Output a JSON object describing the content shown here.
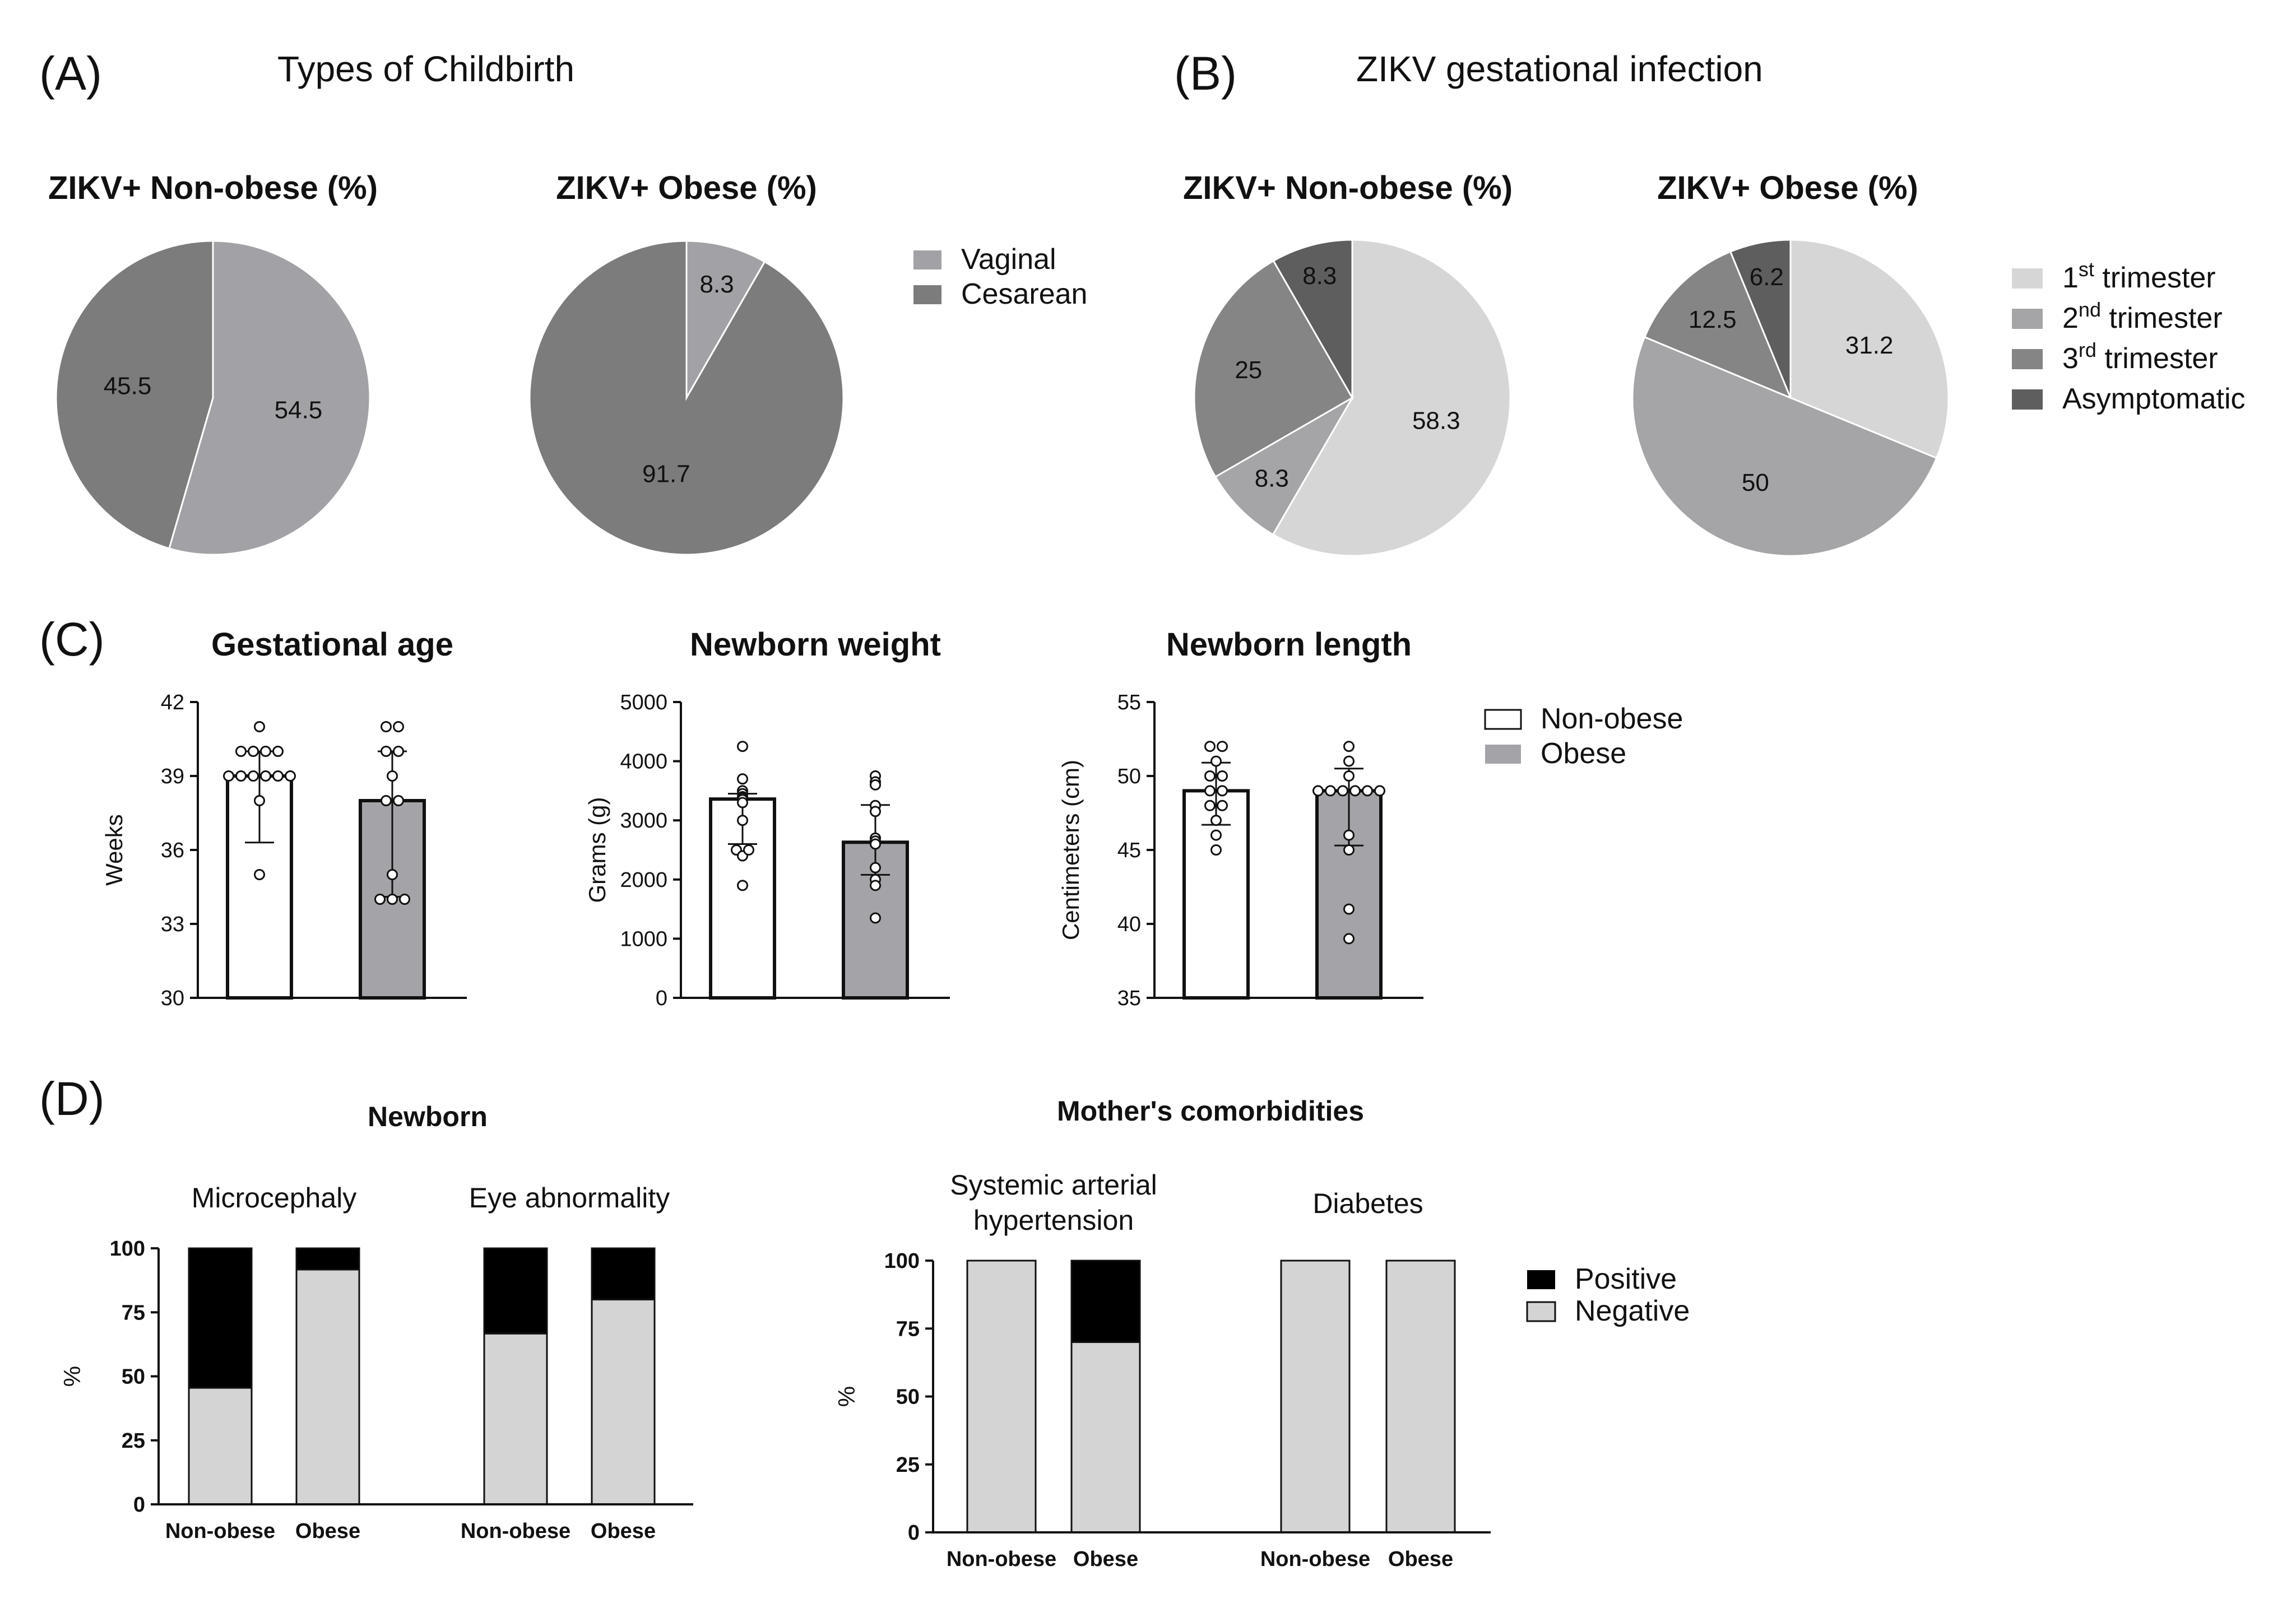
{
  "panel_letters": [
    "(A)",
    "(B)",
    "(C)",
    "(D)"
  ],
  "panel_a_title": "Types of Childbirth",
  "panel_b_title": "ZIKV gestational infection",
  "colors": {
    "vaginal": "#a2a2a6",
    "cesarean": "#7c7c7c",
    "tri1": "#d6d6d6",
    "tri2": "#a5a5a8",
    "tri3": "#858585",
    "asymptomatic": "#5e5e5e",
    "non_obese_fill": "#ffffff",
    "obese_fill": "#a4a4a8",
    "positive": "#000000",
    "negative": "#d4d4d4",
    "ink": "#111111"
  },
  "legend_a": [
    {
      "label": "Vaginal",
      "color": "#a2a2a6"
    },
    {
      "label": "Cesarean",
      "color": "#7c7c7c"
    }
  ],
  "legend_b": [
    {
      "base": "1",
      "sup": "st",
      "rest": " trimester",
      "color": "#d6d6d6"
    },
    {
      "base": "2",
      "sup": "nd",
      "rest": " trimester",
      "color": "#a5a5a8"
    },
    {
      "base": "3",
      "sup": "rd",
      "rest": " trimester",
      "color": "#858585"
    },
    {
      "base": "Asymptomatic",
      "sup": "",
      "rest": "",
      "color": "#5e5e5e"
    }
  ],
  "legend_c": [
    {
      "label": "Non-obese",
      "color": "#ffffff"
    },
    {
      "label": "Obese",
      "color": "#a4a4a8"
    }
  ],
  "legend_d": [
    {
      "label": "Positive",
      "color": "#000000"
    },
    {
      "label": "Negative",
      "color": "#d4d4d4"
    }
  ],
  "panel_d_left_title": "Newborn",
  "panel_d_right_title": "Mother's comorbidities",
  "chart_data": [
    {
      "id": "pieA1",
      "type": "pie",
      "title": "ZIKV+ Non-obese (%)",
      "slices": [
        {
          "label": "Vaginal",
          "value": 54.5,
          "text": "54.5",
          "color": "#a2a2a6"
        },
        {
          "label": "Cesarean",
          "value": 45.5,
          "text": "45.5",
          "color": "#7c7c7c"
        }
      ]
    },
    {
      "id": "pieA2",
      "type": "pie",
      "title": "ZIKV+ Obese (%)",
      "slices": [
        {
          "label": "Vaginal",
          "value": 8.3,
          "text": "8.3",
          "color": "#a2a2a6"
        },
        {
          "label": "Cesarean",
          "value": 91.7,
          "text": "91.7",
          "color": "#7c7c7c"
        }
      ]
    },
    {
      "id": "pieB1",
      "type": "pie",
      "title": "ZIKV+ Non-obese (%)",
      "slices": [
        {
          "label": "1st trimester",
          "value": 58.3,
          "text": "58.3",
          "color": "#d6d6d6"
        },
        {
          "label": "2nd trimester",
          "value": 8.3,
          "text": "8.3",
          "color": "#a5a5a8"
        },
        {
          "label": "3rd trimester",
          "value": 25,
          "text": "25",
          "color": "#858585"
        },
        {
          "label": "Asymptomatic",
          "value": 8.3,
          "text": "8.3",
          "color": "#5e5e5e"
        }
      ]
    },
    {
      "id": "pieB2",
      "type": "pie",
      "title": "ZIKV+ Obese (%)",
      "slices": [
        {
          "label": "1st trimester",
          "value": 31.2,
          "text": "31.2",
          "color": "#d6d6d6"
        },
        {
          "label": "2nd trimester",
          "value": 50,
          "text": "50",
          "color": "#a5a5a8"
        },
        {
          "label": "3rd trimester",
          "value": 12.5,
          "text": "12.5",
          "color": "#858585"
        },
        {
          "label": "Asymptomatic",
          "value": 6.2,
          "text": "6.2",
          "color": "#5e5e5e"
        }
      ]
    },
    {
      "id": "barC1",
      "type": "bar",
      "title": "Gestational age",
      "ylabel": "Weeks",
      "ylim": [
        30,
        42
      ],
      "yticks": [
        "30",
        "33",
        "36",
        "39",
        "42"
      ],
      "ytick_values": [
        30,
        33,
        36,
        39,
        42
      ],
      "categories": [
        "Non-obese",
        "Obese"
      ],
      "values": [
        39,
        38
      ],
      "error": [
        [
          36.3,
          40.0
        ],
        [
          34.1,
          40.0
        ]
      ],
      "points": [
        [
          41,
          40,
          40,
          40,
          40,
          39,
          39,
          39,
          39,
          39,
          39,
          38,
          35
        ],
        [
          41,
          41,
          40,
          40,
          39,
          38,
          38,
          35,
          34,
          34,
          34
        ]
      ]
    },
    {
      "id": "barC2",
      "type": "bar",
      "title": "Newborn weight",
      "ylabel": "Grams (g)",
      "ylim": [
        0,
        5000
      ],
      "yticks": [
        "0",
        "1000",
        "2000",
        "3000",
        "4000",
        "5000"
      ],
      "ytick_values": [
        0,
        1000,
        2000,
        3000,
        4000,
        5000
      ],
      "categories": [
        "Non-obese",
        "Obese"
      ],
      "values": [
        3360,
        2630
      ],
      "error": [
        [
          2600,
          3450
        ],
        [
          2080,
          3260
        ]
      ],
      "points": [
        [
          4250,
          3700,
          3500,
          3450,
          3400,
          3380,
          3350,
          3300,
          3000,
          2500,
          2400,
          2500,
          1900
        ],
        [
          3750,
          3650,
          3600,
          3250,
          3150,
          2700,
          2650,
          2600,
          2200,
          2000,
          1900,
          1350
        ]
      ]
    },
    {
      "id": "barC3",
      "type": "bar",
      "title": "Newborn length",
      "ylabel": "Centimeters (cm)",
      "ylim": [
        35,
        55
      ],
      "yticks": [
        "35",
        "40",
        "45",
        "50",
        "55"
      ],
      "ytick_values": [
        35,
        40,
        45,
        50,
        55
      ],
      "categories": [
        "Non-obese",
        "Obese"
      ],
      "values": [
        49,
        49
      ],
      "error": [
        [
          46.7,
          50.9
        ],
        [
          45.3,
          50.5
        ]
      ],
      "points": [
        [
          52,
          52,
          51,
          50,
          50,
          49,
          49,
          48,
          48,
          47,
          46,
          45
        ],
        [
          52,
          51,
          50,
          49,
          49,
          49,
          49,
          49,
          49,
          46,
          45,
          41,
          39
        ]
      ]
    },
    {
      "id": "stackD1",
      "type": "bar",
      "stacked": true,
      "ylabel": "%",
      "ylim": [
        0,
        100
      ],
      "yticks": [
        "0",
        "25",
        "50",
        "75",
        "100"
      ],
      "ytick_values": [
        0,
        25,
        50,
        75,
        100
      ],
      "groups": [
        {
          "name": "Microcephaly",
          "categories": [
            "Non-obese",
            "Obese"
          ],
          "negative": [
            45.5,
            91.7
          ],
          "positive": [
            54.5,
            8.3
          ]
        },
        {
          "name": "Eye abnormality",
          "categories": [
            "Non-obese",
            "Obese"
          ],
          "negative": [
            66.7,
            80
          ],
          "positive": [
            33.3,
            20
          ]
        }
      ]
    },
    {
      "id": "stackD2",
      "type": "bar",
      "stacked": true,
      "ylabel": "%",
      "ylim": [
        0,
        100
      ],
      "yticks": [
        "0",
        "25",
        "50",
        "75",
        "100"
      ],
      "ytick_values": [
        0,
        25,
        50,
        75,
        100
      ],
      "groups": [
        {
          "name": "Systemic arterial\nhypertension",
          "categories": [
            "Non-obese",
            "Obese"
          ],
          "negative": [
            100,
            70
          ],
          "positive": [
            0,
            30
          ]
        },
        {
          "name": "Diabetes",
          "categories": [
            "Non-obese",
            "Obese"
          ],
          "negative": [
            100,
            100
          ],
          "positive": [
            0,
            0
          ]
        }
      ]
    }
  ]
}
